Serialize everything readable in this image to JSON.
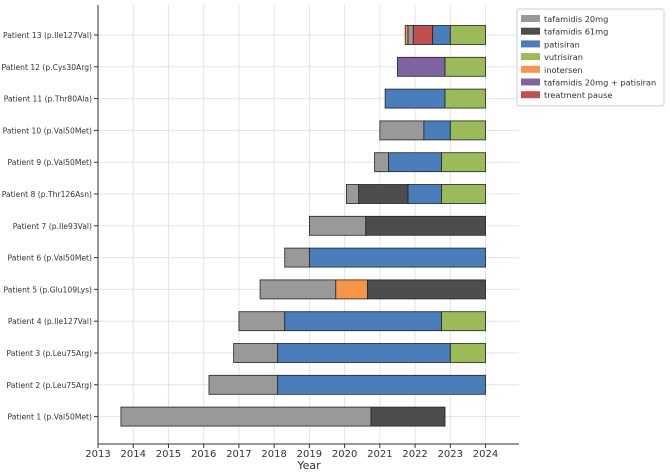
{
  "chart_data": {
    "type": "gantt",
    "title": "",
    "xlabel": "Year",
    "ylabel": "",
    "xlim": [
      2013,
      2024.95
    ],
    "grid": true,
    "legend_position": "top-right",
    "x_ticks": [
      2013,
      2014,
      2015,
      2016,
      2017,
      2018,
      2019,
      2020,
      2021,
      2022,
      2023,
      2024
    ],
    "x_tick_labels": [
      "2013",
      "2014",
      "2015",
      "2016",
      "2017",
      "2018",
      "2019",
      "2020",
      "2021",
      "2022",
      "2023",
      "2024"
    ],
    "treatments": [
      {
        "key": "tafa20",
        "label": "tafamidis 20mg",
        "color": "#999999"
      },
      {
        "key": "tafa61",
        "label": "tafamidis 61mg",
        "color": "#4d4d4d"
      },
      {
        "key": "patisiran",
        "label": "patisiran",
        "color": "#4a7ebb"
      },
      {
        "key": "vutrisiran",
        "label": "vutrisiran",
        "color": "#9bbb59"
      },
      {
        "key": "inotersen",
        "label": "inotersen",
        "color": "#f79646"
      },
      {
        "key": "tafa_pati",
        "label": "tafamidis 20mg + patisiran",
        "color": "#8064a2"
      },
      {
        "key": "pause",
        "label": "treatment pause",
        "color": "#c0504d"
      }
    ],
    "patients": [
      {
        "label": "Patient 1 (p.Val50Met)",
        "segments": [
          {
            "treatment": "tafa20",
            "start": 2013.65,
            "end": 2020.75
          },
          {
            "treatment": "tafa61",
            "start": 2020.75,
            "end": 2022.85
          }
        ]
      },
      {
        "label": "Patient 2 (p.Leu75Arg)",
        "segments": [
          {
            "treatment": "tafa20",
            "start": 2016.15,
            "end": 2018.1
          },
          {
            "treatment": "patisiran",
            "start": 2018.1,
            "end": 2024.0
          }
        ]
      },
      {
        "label": "Patient 3 (p.Leu75Arg)",
        "segments": [
          {
            "treatment": "tafa20",
            "start": 2016.85,
            "end": 2018.1
          },
          {
            "treatment": "patisiran",
            "start": 2018.1,
            "end": 2023.0
          },
          {
            "treatment": "vutrisiran",
            "start": 2023.0,
            "end": 2024.0
          }
        ]
      },
      {
        "label": "Patient 4 (p.Ile127Val)",
        "segments": [
          {
            "treatment": "tafa20",
            "start": 2017.0,
            "end": 2018.3
          },
          {
            "treatment": "patisiran",
            "start": 2018.3,
            "end": 2022.75
          },
          {
            "treatment": "vutrisiran",
            "start": 2022.75,
            "end": 2024.0
          }
        ]
      },
      {
        "label": "Patient 5 (p.Glu109Lys)",
        "segments": [
          {
            "treatment": "tafa20",
            "start": 2017.6,
            "end": 2019.75
          },
          {
            "treatment": "inotersen",
            "start": 2019.75,
            "end": 2020.65
          },
          {
            "treatment": "tafa61",
            "start": 2020.65,
            "end": 2024.0
          }
        ]
      },
      {
        "label": "Patient 6 (p.Val50Met)",
        "segments": [
          {
            "treatment": "tafa20",
            "start": 2018.3,
            "end": 2019.0
          },
          {
            "treatment": "patisiran",
            "start": 2019.0,
            "end": 2024.0
          }
        ]
      },
      {
        "label": "Patient 7 (p.Ile93Val)",
        "segments": [
          {
            "treatment": "tafa20",
            "start": 2019.0,
            "end": 2020.6
          },
          {
            "treatment": "tafa61",
            "start": 2020.6,
            "end": 2024.0
          }
        ]
      },
      {
        "label": "Patient 8 (p.Thr126Asn)",
        "segments": [
          {
            "treatment": "tafa20",
            "start": 2020.05,
            "end": 2020.4
          },
          {
            "treatment": "tafa61",
            "start": 2020.4,
            "end": 2021.8
          },
          {
            "treatment": "patisiran",
            "start": 2021.8,
            "end": 2022.75
          },
          {
            "treatment": "vutrisiran",
            "start": 2022.75,
            "end": 2024.0
          }
        ]
      },
      {
        "label": "Patient 9 (p.Val50Met)",
        "segments": [
          {
            "treatment": "tafa20",
            "start": 2020.85,
            "end": 2021.25
          },
          {
            "treatment": "patisiran",
            "start": 2021.25,
            "end": 2022.75
          },
          {
            "treatment": "vutrisiran",
            "start": 2022.75,
            "end": 2024.0
          }
        ]
      },
      {
        "label": "Patient 10 (p.Val50Met)",
        "segments": [
          {
            "treatment": "tafa20",
            "start": 2021.0,
            "end": 2022.25
          },
          {
            "treatment": "patisiran",
            "start": 2022.25,
            "end": 2023.0
          },
          {
            "treatment": "vutrisiran",
            "start": 2023.0,
            "end": 2024.0
          }
        ]
      },
      {
        "label": "Patient 11 (p.Thr80Ala)",
        "segments": [
          {
            "treatment": "patisiran",
            "start": 2021.15,
            "end": 2022.85
          },
          {
            "treatment": "vutrisiran",
            "start": 2022.85,
            "end": 2024.0
          }
        ]
      },
      {
        "label": "Patient 12 (p.Cys30Arg)",
        "segments": [
          {
            "treatment": "tafa_pati",
            "start": 2021.5,
            "end": 2022.85
          },
          {
            "treatment": "vutrisiran",
            "start": 2022.85,
            "end": 2024.0
          }
        ]
      },
      {
        "label": "Patient 13 (p.Ile127Val)",
        "segments": [
          {
            "treatment": "inotersen",
            "start": 2021.72,
            "end": 2021.8
          },
          {
            "treatment": "tafa20",
            "start": 2021.8,
            "end": 2021.95
          },
          {
            "treatment": "pause",
            "start": 2021.95,
            "end": 2022.5
          },
          {
            "treatment": "patisiran",
            "start": 2022.5,
            "end": 2023.0
          },
          {
            "treatment": "vutrisiran",
            "start": 2023.0,
            "end": 2024.0
          }
        ]
      }
    ]
  }
}
